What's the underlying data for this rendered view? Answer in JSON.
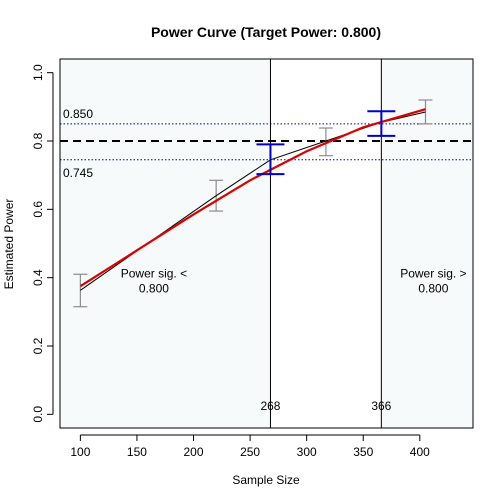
{
  "chart_data": {
    "type": "line",
    "title": "Power Curve (Target Power: 0.800)",
    "xlabel": "Sample Size",
    "ylabel": "Estimated Power",
    "xlim": [
      82,
      447
    ],
    "ylim": [
      -0.04,
      1.04
    ],
    "x_ticks": [
      100,
      150,
      200,
      250,
      300,
      350,
      400
    ],
    "y_ticks": [
      0.0,
      0.2,
      0.4,
      0.6,
      0.8,
      1.0
    ],
    "x_tick_labels": [
      "100",
      "150",
      "200",
      "250",
      "300",
      "350",
      "400"
    ],
    "y_tick_labels": [
      "0.0",
      "0.2",
      "0.4",
      "0.6",
      "0.8",
      "1.0"
    ],
    "target_power": 0.8,
    "band": {
      "lower": 0.745,
      "upper": 0.85,
      "lower_label": "0.745",
      "upper_label": "0.850"
    },
    "series": [
      {
        "role": "observed",
        "color": "#000000",
        "x": [
          100,
          220,
          268,
          317,
          366,
          405
        ],
        "y": [
          0.363,
          0.64,
          0.745,
          0.8,
          0.855,
          0.885
        ]
      },
      {
        "role": "fit",
        "color": "#dd0000",
        "x": [
          100,
          150,
          200,
          250,
          300,
          350,
          405
        ],
        "y": [
          0.375,
          0.48,
          0.585,
          0.685,
          0.77,
          0.84,
          0.893
        ]
      }
    ],
    "error_bars_gray": [
      {
        "x": 100,
        "low": 0.315,
        "high": 0.41
      },
      {
        "x": 220,
        "low": 0.595,
        "high": 0.685
      },
      {
        "x": 317,
        "low": 0.757,
        "high": 0.838
      },
      {
        "x": 405,
        "low": 0.85,
        "high": 0.92
      }
    ],
    "error_bars_blue": [
      {
        "x": 268,
        "low": 0.703,
        "high": 0.79
      },
      {
        "x": 366,
        "low": 0.815,
        "high": 0.887
      }
    ],
    "vertical_markers": [
      {
        "x": 268,
        "label": "268"
      },
      {
        "x": 366,
        "label": "366"
      }
    ],
    "region_labels": [
      {
        "x": 165,
        "y": 0.4,
        "lines": [
          "Power sig. <",
          "0.800"
        ]
      },
      {
        "x": 412,
        "y": 0.4,
        "lines": [
          "Power sig. >",
          "0.800"
        ]
      }
    ],
    "colors": {
      "shade_left": "#f6fafb",
      "shade_right": "#f6fafb",
      "band_line": "#00008b",
      "target_line": "#000000",
      "blue_bar": "#0000cc",
      "gray_bar": "#8c8c8c"
    }
  }
}
